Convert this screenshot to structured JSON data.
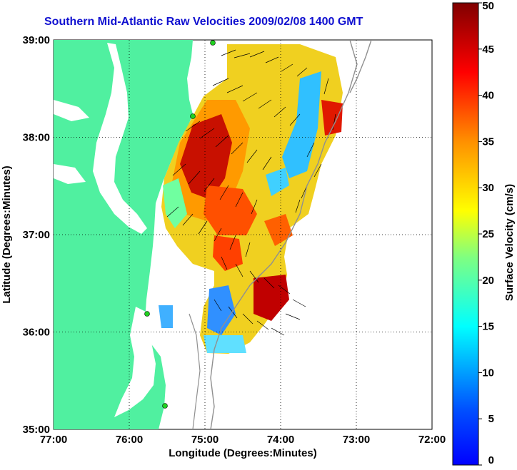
{
  "title": "Southern Mid-Atlantic Raw Velocities 2009/02/08 1400 GMT",
  "axes": {
    "xlabel": "Longitude (Degrees:Minutes)",
    "ylabel": "Latitude (Degrees:Minutes)",
    "x_ticks": [
      "77:00",
      "76:00",
      "75:00",
      "74:00",
      "73:00",
      "72:00"
    ],
    "y_ticks": [
      "39:00",
      "38:00",
      "37:00",
      "36:00",
      "35:00"
    ],
    "xlim": [
      -77,
      -72
    ],
    "ylim": [
      35,
      39
    ],
    "grid": "dotted"
  },
  "colorbar": {
    "label": "Surface Velocity (cm/s)",
    "ticks": [
      "0",
      "5",
      "10",
      "15",
      "20",
      "25",
      "30",
      "35",
      "40",
      "45",
      "50"
    ],
    "range": [
      0,
      50
    ],
    "colormap": "jet"
  },
  "colors": {
    "land": "#50f0a0",
    "title": "#1010d0",
    "station": "#20d020"
  }
}
